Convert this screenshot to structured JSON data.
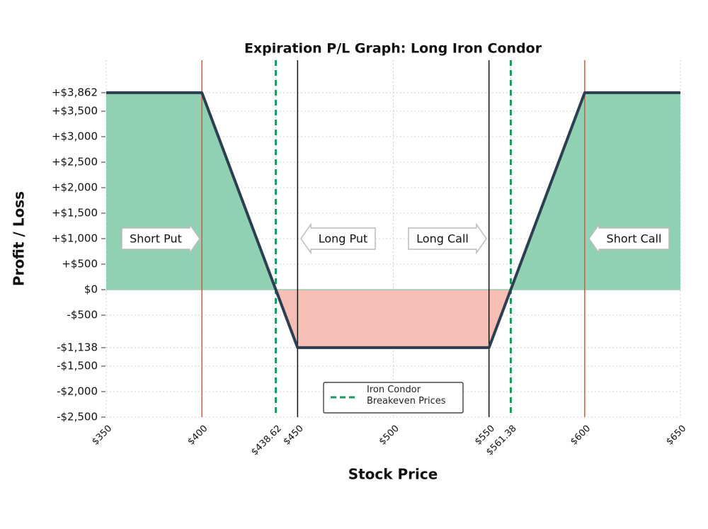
{
  "chart_data": {
    "type": "line",
    "title": "Expiration P/L Graph: Long Iron Condor",
    "xlabel": "Stock Price",
    "ylabel": "Profit / Loss",
    "x": [
      350,
      400,
      450,
      550,
      600,
      650
    ],
    "values": [
      3862,
      3862,
      -1138,
      -1138,
      3862,
      3862
    ],
    "color": "#2c3e50",
    "profit_color": "#90d1b3",
    "loss_color": "#f6beb5",
    "short_strikes": [
      400,
      600
    ],
    "short_strike_color": "#e0533b",
    "long_strikes": [
      450,
      550
    ],
    "long_strike_color": "#111111",
    "breakevens": [
      438.62,
      561.38
    ],
    "breakeven_color": "#1a9a5e",
    "breakeven_label": "Iron Condor Breakeven Prices",
    "annotations": [
      {
        "text": "Short Put",
        "direction": "right"
      },
      {
        "text": "Long Put",
        "direction": "left"
      },
      {
        "text": "Long Call",
        "direction": "right"
      },
      {
        "text": "Short Call",
        "direction": "left"
      }
    ],
    "xlim": [
      350,
      650
    ],
    "ylim": [
      -2500,
      4500
    ],
    "xticks": [
      {
        "value": 350,
        "label": "$350"
      },
      {
        "value": 400,
        "label": "$400"
      },
      {
        "value": 438.62,
        "label": "$438.62"
      },
      {
        "value": 450,
        "label": "$450"
      },
      {
        "value": 500,
        "label": "$500"
      },
      {
        "value": 550,
        "label": "$550"
      },
      {
        "value": 561.38,
        "label": "$561.38"
      },
      {
        "value": 600,
        "label": "$600"
      },
      {
        "value": 650,
        "label": "$650"
      }
    ],
    "yticks": [
      {
        "value": -2500,
        "label": "-$2,500"
      },
      {
        "value": -2000,
        "label": "-$2,000"
      },
      {
        "value": -1500,
        "label": "-$1,500"
      },
      {
        "value": -1138,
        "label": "-$1,138"
      },
      {
        "value": -500,
        "label": "-$500"
      },
      {
        "value": 0,
        "label": "$0"
      },
      {
        "value": 500,
        "label": "+$500"
      },
      {
        "value": 1000,
        "label": "+$1,000"
      },
      {
        "value": 1500,
        "label": "+$1,500"
      },
      {
        "value": 2000,
        "label": "+$2,000"
      },
      {
        "value": 2500,
        "label": "+$2,500"
      },
      {
        "value": 3000,
        "label": "+$3,000"
      },
      {
        "value": 3500,
        "label": "+$3,500"
      },
      {
        "value": 3862,
        "label": "+$3,862"
      }
    ],
    "grid": true
  }
}
